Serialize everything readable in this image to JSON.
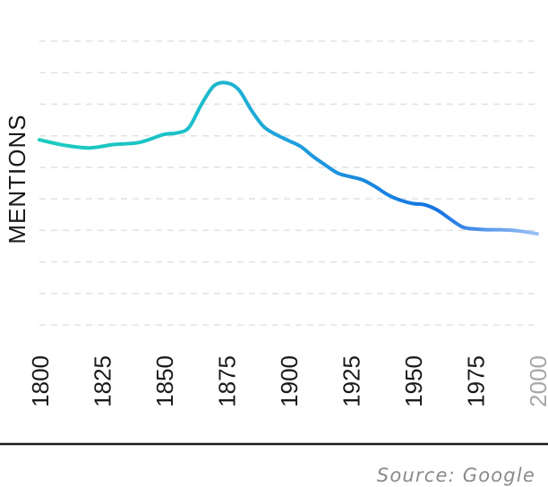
{
  "chart_data": {
    "type": "line",
    "title": "",
    "xlabel": "",
    "ylabel": "MENTIONS",
    "x": [
      1800,
      1810,
      1820,
      1830,
      1840,
      1850,
      1855,
      1860,
      1865,
      1870,
      1875,
      1880,
      1885,
      1890,
      1895,
      1900,
      1905,
      1910,
      1915,
      1920,
      1925,
      1930,
      1935,
      1940,
      1945,
      1950,
      1955,
      1960,
      1965,
      1970,
      1975,
      1980,
      1985,
      1990,
      1995,
      2000
    ],
    "series": [
      {
        "values": [
          100,
          92,
          88,
          93,
          96,
          108,
          110,
          118,
          152,
          180,
          185,
          175,
          145,
          120,
          108,
          99,
          90,
          75,
          62,
          50,
          45,
          40,
          30,
          18,
          10,
          5,
          3,
          -5,
          -18,
          -30,
          -33,
          -34,
          -34,
          -35,
          -37,
          -40
        ]
      }
    ],
    "x_ticks": [
      "1800",
      "1825",
      "1850",
      "1875",
      "1900",
      "1925",
      "1950",
      "1975",
      "2000"
    ],
    "x_tick_muted": [
      "2000"
    ],
    "xlim": [
      1800,
      2000
    ],
    "ylim": [
      -176,
      247
    ],
    "grid": true,
    "grid_style": "dashed-horizontal",
    "legend": "none",
    "line_colors": {
      "start": "#1ecbbf",
      "mid": "#1fa0dd",
      "end": "#1573e0",
      "fade": "#9cc0f5"
    },
    "source": "Source: Google"
  }
}
